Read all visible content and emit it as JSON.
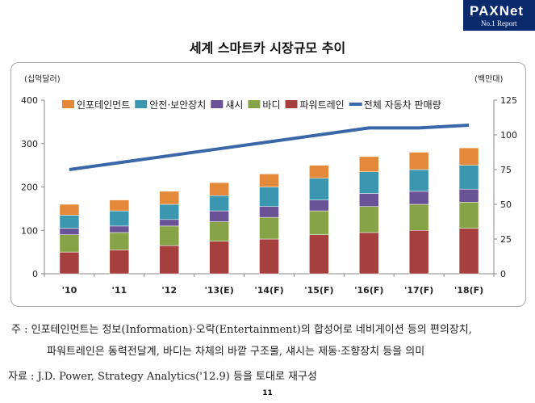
{
  "logo": {
    "name": "PAXNet",
    "sub": "No.1 Report"
  },
  "chart_data": {
    "type": "bar",
    "title": "세계 스마트카 시장규모 추이",
    "ylabel": "(십억달러)",
    "y2label": "(백만대)",
    "ylim": [
      0,
      400
    ],
    "y2lim": [
      0,
      125
    ],
    "yticks": [
      0,
      100,
      200,
      300,
      400
    ],
    "y2ticks": [
      0,
      25,
      50,
      75,
      100,
      125
    ],
    "categories": [
      "'10",
      "'11",
      "'12",
      "'13(E)",
      "'14(F)",
      "'15(F)",
      "'16(F)",
      "'17(F)",
      "'18(F)"
    ],
    "series": [
      {
        "name": "파워트레인",
        "color": "#a5403e",
        "values": [
          50,
          55,
          65,
          75,
          80,
          90,
          95,
          100,
          105
        ]
      },
      {
        "name": "바디",
        "color": "#86a447",
        "values": [
          40,
          40,
          45,
          45,
          50,
          55,
          60,
          60,
          60
        ]
      },
      {
        "name": "섀시",
        "color": "#6a5296",
        "values": [
          15,
          15,
          15,
          25,
          25,
          25,
          30,
          30,
          30
        ]
      },
      {
        "name": "안전·보안장치",
        "color": "#3b96b0",
        "values": [
          30,
          35,
          35,
          35,
          45,
          50,
          50,
          50,
          55
        ]
      },
      {
        "name": "인포테인먼트",
        "color": "#e4883a",
        "values": [
          25,
          25,
          30,
          30,
          30,
          30,
          35,
          40,
          40
        ]
      }
    ],
    "line": {
      "name": "전체 자동차 판매량",
      "color": "#3a67a8",
      "axis": "right",
      "values": [
        75,
        80,
        85,
        90,
        95,
        100,
        105,
        105,
        107
      ]
    },
    "legend_order": [
      "인포테인먼트",
      "안전·보안장치",
      "섀시",
      "바디",
      "파워트레인",
      "전체 자동차 판매량"
    ],
    "legend_position": "top"
  },
  "notes": {
    "line1": "주  : 인포테인먼트는 정보(Information)·오락(Entertainment)의 합성어로 네비게이션 등의 편의장치,",
    "line2": "파워트레인은 동력전달계, 바디는 차체의 바깥 구조물, 섀시는 제동·조향장치 등을 의미",
    "line3": "자료 : J.D. Power, Strategy Analytics('12.9) 등을 토대로 재구성"
  },
  "page_number": "11"
}
